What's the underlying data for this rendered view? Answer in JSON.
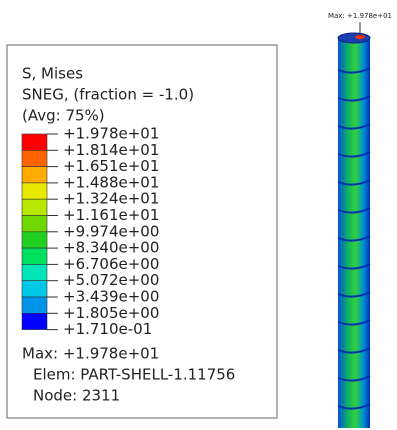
{
  "legend": {
    "title_lines": [
      "S, Mises",
      "SNEG, (fraction = -1.0)",
      "(Avg: 75%)"
    ],
    "levels": [
      "+1.978e+01",
      "+1.814e+01",
      "+1.651e+01",
      "+1.488e+01",
      "+1.324e+01",
      "+1.161e+01",
      "+9.974e+00",
      "+8.340e+00",
      "+6.706e+00",
      "+5.072e+00",
      "+3.439e+00",
      "+1.805e+00",
      "+1.710e-01"
    ],
    "colors": [
      "#ff0000",
      "#ff6400",
      "#ffaa00",
      "#e8e800",
      "#b8e800",
      "#6ed800",
      "#22d022",
      "#00e060",
      "#00e6b8",
      "#00c8e8",
      "#0094e8",
      "#0000ff"
    ],
    "info": [
      "Max: +1.978e+01",
      "Elem: PART-SHELL-1.11756",
      "Node: 2311"
    ]
  },
  "viewport": {
    "max_annotation": "Max: +1.978e+01"
  }
}
